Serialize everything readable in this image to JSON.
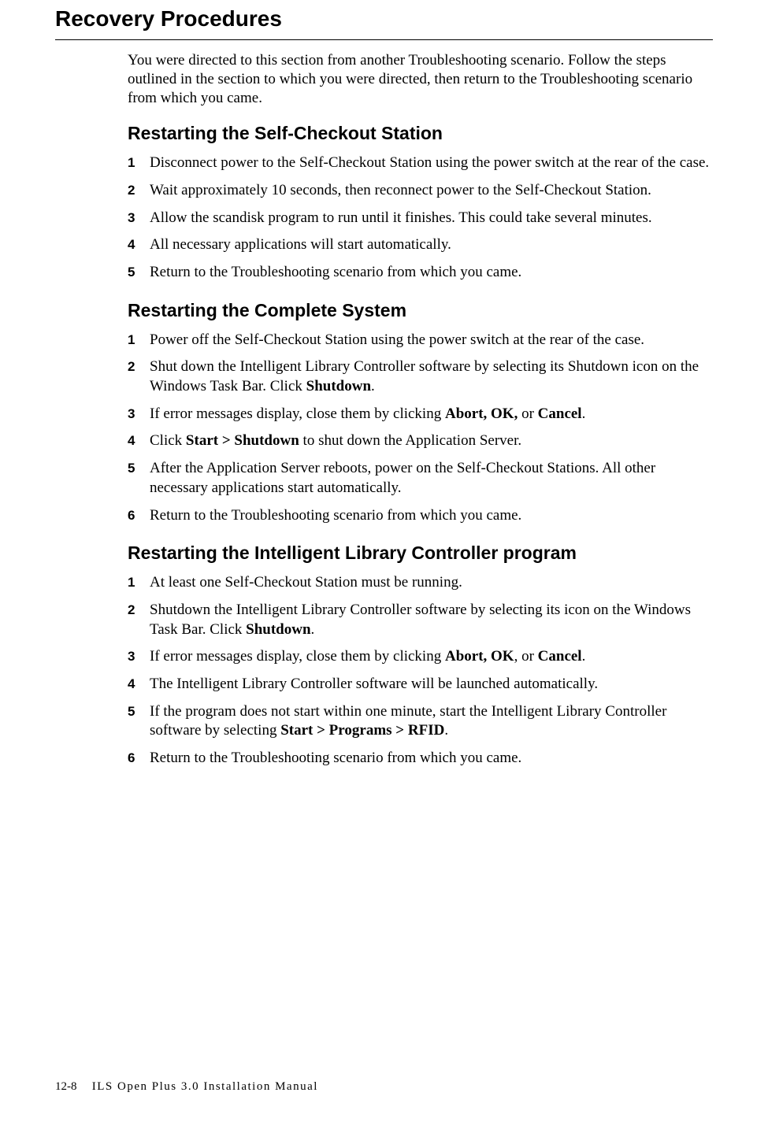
{
  "page_title": "Recovery Procedures",
  "intro": "You were directed to this section from another Troubleshooting scenario. Follow the steps outlined in the section to which you were directed, then return to the Troubleshooting scenario from which you came.",
  "sections": [
    {
      "heading": "Restarting the Self-Checkout Station",
      "steps": [
        "Disconnect power to the Self-Checkout Station using the power switch at the rear of the case.",
        "Wait approximately 10 seconds, then reconnect power to the Self-Checkout Station.",
        "Allow the scandisk program to run until it finishes. This could take several minutes.",
        "All necessary applications will start automatically.",
        "Return to the Troubleshooting scenario from which you came."
      ]
    },
    {
      "heading": "Restarting the Complete System",
      "steps": [
        "Power off the Self-Checkout Station using the power switch at the rear of the case.",
        "Shut down the Intelligent Library Controller software by selecting its Shutdown icon on the Windows Task Bar. Click <b>Shutdown</b>.",
        "If error messages display, close them by clicking <b>Abort, OK,</b> or <b>Cancel</b>.",
        "Click <b>Start > Shutdown</b> to shut down the Application Server.",
        "After the Application Server reboots, power on the Self-Checkout Stations. All other necessary applications start automatically.",
        "Return to the Troubleshooting scenario from which you came."
      ]
    },
    {
      "heading": "Restarting the Intelligent Library Controller program",
      "steps": [
        "At least one Self-Checkout Station must be running.",
        "Shutdown the Intelligent Library Controller software by selecting its icon on the Windows Task Bar. Click <b>Shutdown</b>.",
        "If error messages display, close them by clicking <b>Abort, OK</b>, or <b>Cancel</b>.",
        "The Intelligent Library Controller software will be launched automatically.",
        "If the program does not start within one minute, start the Intelligent Library Controller software by selecting <b>Start > Programs > RFID</b>.",
        "Return to the Troubleshooting scenario from which you came."
      ]
    }
  ],
  "footer_page": "12-8",
  "footer_title": "ILS Open Plus 3.0 Installation Manual",
  "colors": {
    "text": "#000000",
    "background": "#ffffff",
    "rule": "#000000"
  },
  "fonts": {
    "body_family": "Times New Roman",
    "heading_family": "Arial",
    "page_title_size": 28,
    "section_heading_size": 23,
    "body_size": 19,
    "step_num_size": 17,
    "footer_size": 15
  }
}
